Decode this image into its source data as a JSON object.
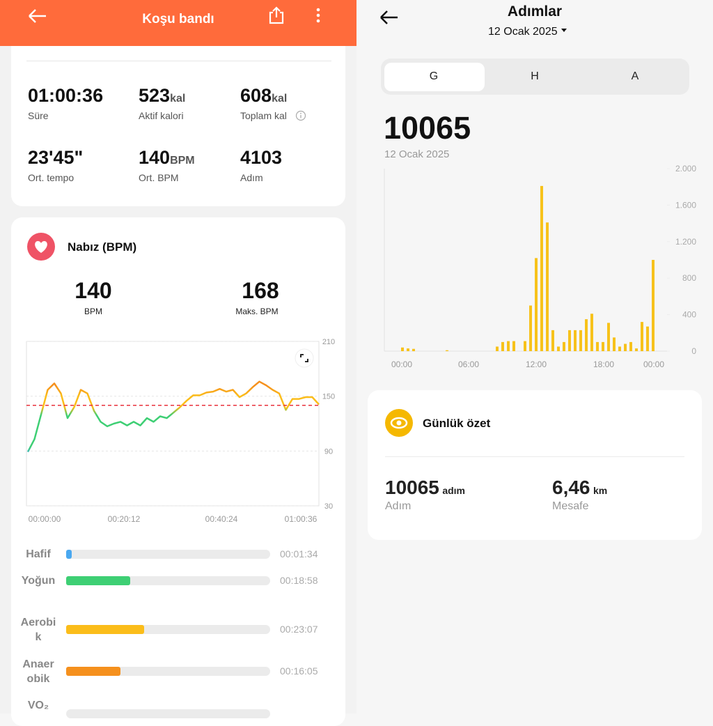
{
  "left": {
    "header": {
      "title": "Koşu bandı"
    },
    "stats": [
      {
        "value": "01:00:36",
        "label": "Süre"
      },
      {
        "value": 523,
        "unit": "kal",
        "label": "Aktif kalori"
      },
      {
        "value": 608,
        "unit": "kal",
        "label": "Toplam kal"
      },
      {
        "value": "23'45\"",
        "label": "Ort. tempo"
      },
      {
        "value": 140,
        "unit": "BPM",
        "label": "Ort. BPM"
      },
      {
        "value": 4103,
        "label": "Adım"
      }
    ],
    "heart_rate": {
      "title": "Nabız (BPM)",
      "avg": {
        "value": 140,
        "label": "BPM"
      },
      "max": {
        "value": 168,
        "label": "Maks. BPM"
      },
      "chart_data": {
        "type": "line",
        "values": [
          89,
          103,
          130,
          157,
          164,
          153,
          126,
          138,
          157,
          153,
          134,
          122,
          117,
          120,
          122,
          118,
          122,
          118,
          126,
          122,
          128,
          126,
          132,
          138,
          145,
          151,
          151,
          154,
          155,
          158,
          155,
          157,
          149,
          153,
          160,
          166,
          162,
          157,
          153,
          135,
          147,
          147,
          149,
          149,
          141
        ],
        "ylim": [
          30,
          210
        ],
        "yticks": [
          210,
          150,
          90,
          30
        ],
        "x_labels": [
          "00:00:00",
          "00:20:12",
          "00:40:24",
          "01:00:36"
        ],
        "average_line_color": "#e8323c"
      }
    },
    "zones": [
      {
        "name": "Hafif",
        "time": "00:01:34",
        "color": "#4aa8f0"
      },
      {
        "name": "Yoğun",
        "time": "00:18:58",
        "color": "#3ecf74"
      },
      {
        "name": "Aerobik",
        "time": "00:23:07",
        "color": "#fbbd1a"
      },
      {
        "name": "Anaerobik",
        "time": "00:16:05",
        "color": "#f5901d"
      },
      {
        "name": "VO₂"
      }
    ]
  },
  "right": {
    "header": {
      "title": "Adımlar",
      "date": "12 Ocak 2025"
    },
    "tabs": [
      "G",
      "H",
      "A"
    ],
    "total": 10065,
    "total_date": "12 Ocak 2025",
    "chart_data": {
      "type": "bar",
      "color": "#f7c21b",
      "values": [
        40,
        30,
        25,
        0,
        0,
        0,
        0,
        0,
        10,
        0,
        0,
        0,
        0,
        0,
        0,
        0,
        0,
        50,
        100,
        110,
        110,
        0,
        110,
        500,
        1020,
        1810,
        1410,
        230,
        50,
        100,
        230,
        230,
        230,
        350,
        410,
        100,
        100,
        310,
        150,
        50,
        80,
        100,
        30,
        320,
        270,
        1000
      ],
      "ylim": [
        0,
        2000
      ],
      "yticks": [
        {
          "value": 2000,
          "label": "2.000"
        },
        {
          "value": 1600,
          "label": "1.600"
        },
        {
          "value": 1200,
          "label": "1.200"
        },
        800,
        400,
        0
      ],
      "x_labels": [
        "00:00",
        "06:00",
        "12:00",
        "18:00",
        "00:00"
      ]
    },
    "summary": {
      "title": "Günlük özet",
      "steps": {
        "value": "10065",
        "unit": "adım",
        "label": "Adım"
      },
      "distance": {
        "value": "6,46",
        "unit": "km",
        "label": "Mesafe"
      }
    }
  }
}
